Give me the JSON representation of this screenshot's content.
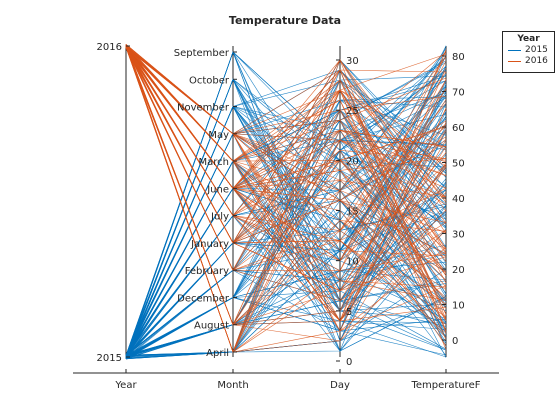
{
  "chart_data": {
    "type": "parallel-coordinates",
    "title": "Temperature Data",
    "coordinates": [
      "Year",
      "Month",
      "Day",
      "TemperatureF"
    ],
    "axes": {
      "Year": {
        "type": "categorical",
        "categories_bottom_to_top": [
          "2015",
          "2016"
        ]
      },
      "Month": {
        "type": "categorical",
        "categories_bottom_to_top": [
          "April",
          "August",
          "December",
          "February",
          "January",
          "July",
          "June",
          "March",
          "May",
          "November",
          "October",
          "September"
        ]
      },
      "Day": {
        "type": "numeric",
        "ylim": [
          0,
          31
        ],
        "ticks": [
          0,
          5,
          10,
          15,
          20,
          25,
          30
        ]
      },
      "TemperatureF": {
        "type": "numeric",
        "ylim": [
          -7,
          86
        ],
        "ticks": [
          0,
          10,
          20,
          30,
          40,
          50,
          60,
          70,
          80
        ]
      }
    },
    "group_legend_title": "Year",
    "series": [
      {
        "name": "2015",
        "color": "#0072BD"
      },
      {
        "name": "2016",
        "color": "#D95319"
      }
    ],
    "grid": false,
    "legend_position": "top-right, outside"
  }
}
